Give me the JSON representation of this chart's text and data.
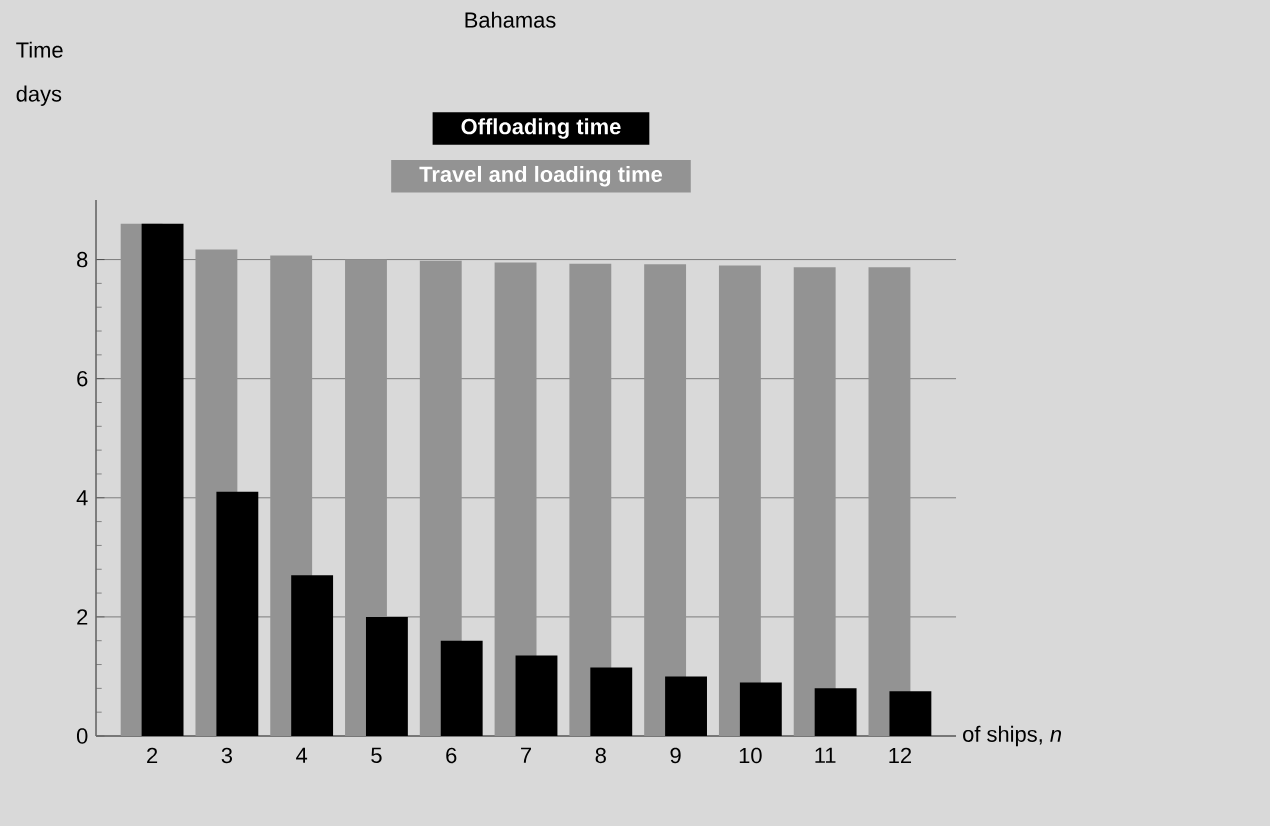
{
  "chart_data": {
    "type": "bar",
    "title": "Bahamas",
    "xlabel": "of ships, *n*",
    "ylabel": "Time days",
    "categories": [
      "2",
      "3",
      "4",
      "5",
      "6",
      "7",
      "8",
      "9",
      "10",
      "11",
      "12"
    ],
    "series": [
      {
        "name": "Travel and loading time",
        "color": "#939393",
        "values": [
          8.6,
          8.17,
          8.07,
          8.0,
          7.98,
          7.95,
          7.93,
          7.92,
          7.9,
          7.87,
          7.87
        ]
      },
      {
        "name": "Offloading time",
        "color": "#000000",
        "values": [
          8.6,
          4.1,
          2.7,
          2.0,
          1.6,
          1.35,
          1.15,
          1.0,
          0.9,
          0.8,
          0.75
        ]
      }
    ],
    "ylim": [
      0,
      9
    ],
    "yticks": [
      0,
      2,
      4,
      6,
      8
    ],
    "grid": "y",
    "legend": "top"
  }
}
